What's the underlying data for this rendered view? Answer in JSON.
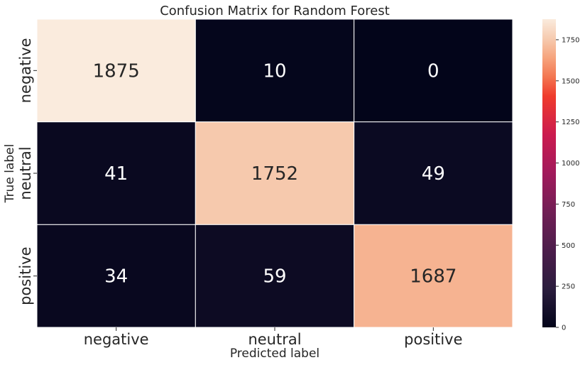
{
  "chart_data": {
    "type": "heatmap",
    "title": "Confusion Matrix for Random Forest",
    "xlabel": "Predicted label",
    "ylabel": "True label",
    "x_categories": [
      "negative",
      "neutral",
      "positive"
    ],
    "y_categories": [
      "negative",
      "neutral",
      "positive"
    ],
    "values": [
      [
        1875,
        10,
        0
      ],
      [
        41,
        1752,
        49
      ],
      [
        34,
        59,
        1687
      ]
    ],
    "colorbar": {
      "min": 0,
      "max": 1875,
      "ticks": [
        0,
        250,
        500,
        750,
        1000,
        1250,
        1500,
        1750
      ],
      "colormap": "rocket"
    },
    "colors": {
      "text_on_dark": "#ffffff",
      "text_on_light": "#262626",
      "cell_border": "#ffffff"
    }
  }
}
